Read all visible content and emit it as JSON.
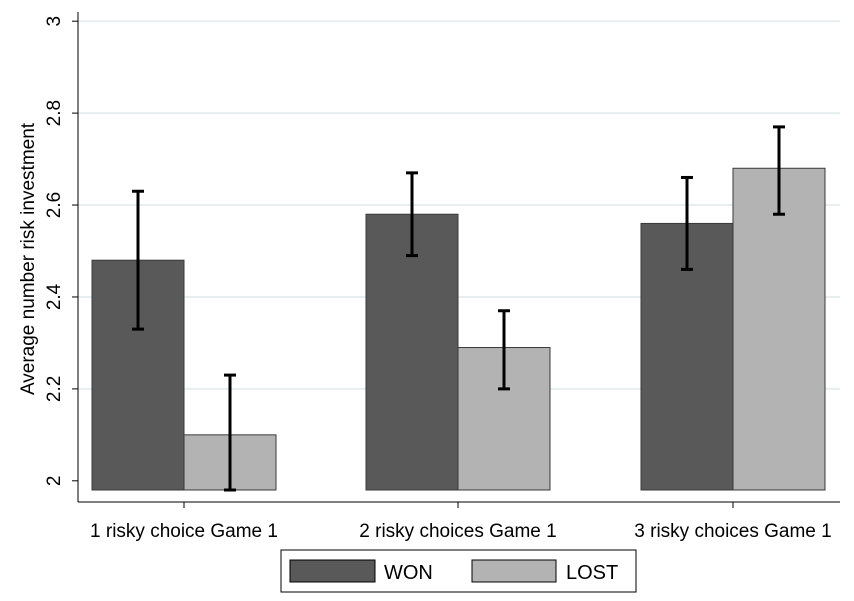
{
  "chart_data": {
    "type": "bar",
    "categories": [
      "1 risky choice Game 1",
      "2 risky choices Game 1",
      "3 risky choices Game 1"
    ],
    "series": [
      {
        "name": "WON",
        "color": "#595959",
        "values": [
          2.48,
          2.58,
          2.56
        ],
        "ci_low": [
          2.33,
          2.49,
          2.46
        ],
        "ci_high": [
          2.63,
          2.67,
          2.66
        ]
      },
      {
        "name": "LOST",
        "color": "#b3b3b3",
        "values": [
          2.1,
          2.29,
          2.68
        ],
        "ci_low": [
          1.98,
          2.2,
          2.58
        ],
        "ci_high": [
          2.23,
          2.37,
          2.77
        ]
      }
    ],
    "title": "",
    "xlabel": "",
    "ylabel": "Average number risk investment",
    "ylim": [
      1.98,
      3.02
    ],
    "yticks": [
      "2",
      "2.2",
      "2.4",
      "2.6",
      "2.8",
      "3"
    ],
    "grid": true,
    "legend_position": "bottom"
  }
}
